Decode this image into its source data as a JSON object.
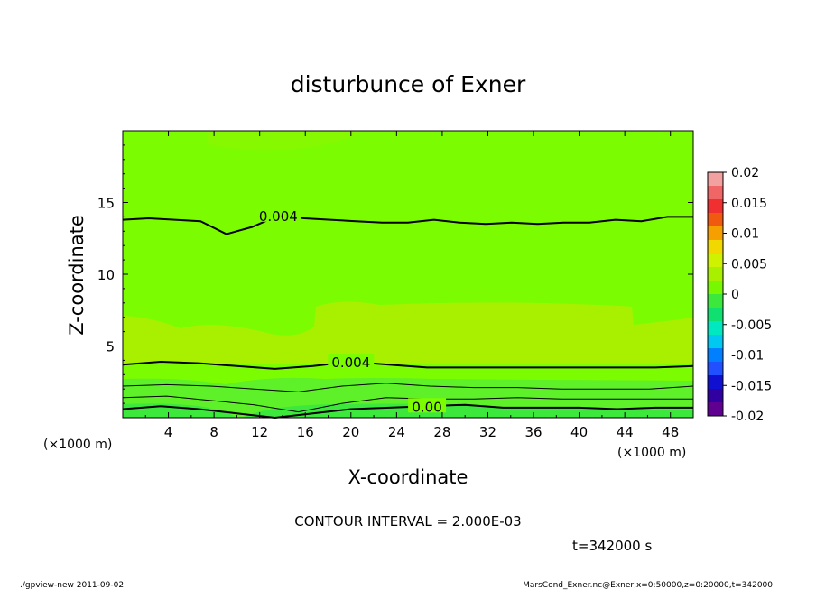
{
  "chart_data": {
    "type": "heatmap",
    "title": "disturbunce of Exner",
    "xlabel": "X-coordinate",
    "ylabel": "Z-coordinate",
    "x_unit": "(×1000 m)",
    "x_unit_right": "(×1000 m)",
    "xlim": [
      0,
      50
    ],
    "ylim": [
      0,
      20
    ],
    "x_ticks": [
      4,
      8,
      12,
      16,
      20,
      24,
      28,
      32,
      36,
      40,
      44,
      48
    ],
    "y_ticks": [
      5,
      10,
      15
    ],
    "contour_interval_text": "CONTOUR INTERVAL = 2.000E-03",
    "time_text": "t=342000 s",
    "colorbar": {
      "range": [
        -0.02,
        0.02
      ],
      "labels": [
        "0.02",
        "0.015",
        "0.01",
        "0.005",
        "0",
        "-0.005",
        "-0.01",
        "-0.015",
        "-0.02"
      ],
      "colors": [
        "#f2a0a0",
        "#f06666",
        "#f03030",
        "#f05a10",
        "#f5a000",
        "#f0d800",
        "#cff200",
        "#a8f000",
        "#78f800",
        "#3ce83c",
        "#10e070",
        "#00e8c0",
        "#00c8f0",
        "#0080ff",
        "#2050ff",
        "#1010d0",
        "#3000a0",
        "#600090"
      ]
    },
    "contour_lines": [
      {
        "label": "0.004",
        "z": [
          13.8,
          13.9,
          13.8,
          13.7,
          12.8,
          13.3,
          14.1,
          13.9,
          13.8,
          13.7,
          13.6,
          13.6,
          13.8,
          13.6,
          13.5,
          13.6,
          13.5,
          13.6,
          13.6,
          13.8,
          13.7,
          14.0,
          14.0
        ]
      },
      {
        "label": "0.004",
        "z": [
          3.7,
          3.9,
          3.8,
          3.6,
          3.4,
          3.6,
          3.9,
          3.7,
          3.5,
          3.5,
          3.5,
          3.5,
          3.5,
          3.5,
          3.5,
          3.6
        ]
      },
      {
        "label": "",
        "z": [
          2.2,
          2.3,
          2.2,
          2.0,
          1.8,
          2.2,
          2.4,
          2.2,
          2.1,
          2.1,
          2.0,
          2.0,
          2.0,
          2.2
        ]
      },
      {
        "label": "",
        "z": [
          1.4,
          1.5,
          1.2,
          0.9,
          0.4,
          1.0,
          1.4,
          1.3,
          1.3,
          1.4,
          1.3,
          1.3,
          1.3,
          1.3
        ]
      },
      {
        "label": "0.00",
        "z": [
          0.6,
          0.8,
          0.6,
          0.3,
          0.0,
          0.3,
          0.6,
          0.7,
          0.8,
          0.9,
          0.7,
          0.7,
          0.7,
          0.6,
          0.7,
          0.7
        ]
      }
    ],
    "grid": false
  },
  "footer": {
    "left": "./gpview-new   2011-09-02",
    "right": "MarsCond_Exner.nc@Exner,x=0:50000,z=0:20000,t=342000"
  },
  "colors": {
    "field_main": "#7cfc00",
    "field_light": "#a8f000",
    "field_low": "#3ce83c",
    "contour": "#000000"
  }
}
